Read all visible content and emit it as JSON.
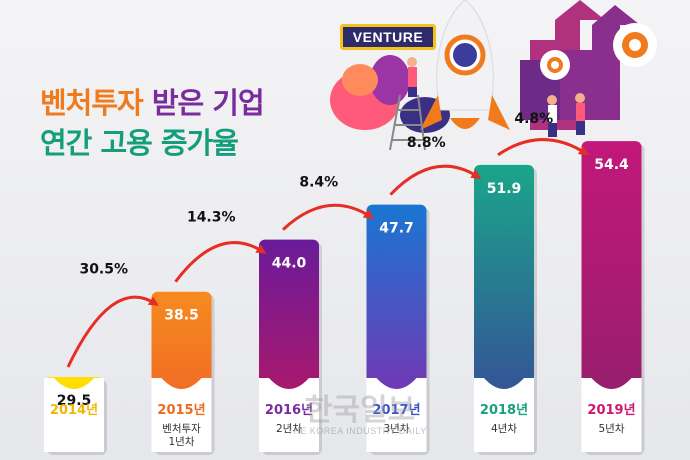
{
  "title": {
    "line1_part1": "벤처투자",
    "line1_part2": "받은 기업",
    "line2": "연간 고용 증가율"
  },
  "illustration": {
    "sign_text": "VENTURE"
  },
  "watermark": {
    "main": "한국일보",
    "sub": "THE KOREA INDUSTRY DAILY"
  },
  "chart_data": {
    "type": "bar",
    "categories": [
      "2014년",
      "2015년",
      "2016년",
      "2017년",
      "2018년",
      "2019년"
    ],
    "sublabels": [
      "",
      "벤처투자\n1년차",
      "2년차",
      "3년차",
      "4년차",
      "5년차"
    ],
    "values": [
      29.5,
      38.5,
      44.0,
      47.7,
      51.9,
      54.4
    ],
    "value_labels": [
      "29.5",
      "38.5",
      "44.0",
      "47.7",
      "51.9",
      "54.4"
    ],
    "growth_labels": [
      "30.5%",
      "14.3%",
      "8.4%",
      "8.8%",
      "4.8%"
    ],
    "title": "벤처투자 받은 기업 연간 고용 증가율",
    "xlabel": "",
    "ylabel": "",
    "ylim": [
      0,
      60
    ],
    "grid": false,
    "colors": [
      [
        "#ffe100",
        "#f4c50c"
      ],
      [
        "#f68b1f",
        "#ef5a28"
      ],
      [
        "#6a1b9a",
        "#c2185b"
      ],
      [
        "#1976d2",
        "#8e24aa"
      ],
      [
        "#1aa58a",
        "#3a3f9a"
      ],
      [
        "#c2187a",
        "#8e1f6a"
      ]
    ],
    "year_label_colors": [
      "#f2b705",
      "#ef6a1e",
      "#7a2b9d",
      "#3a56c5",
      "#19a07c",
      "#d0166e"
    ]
  }
}
